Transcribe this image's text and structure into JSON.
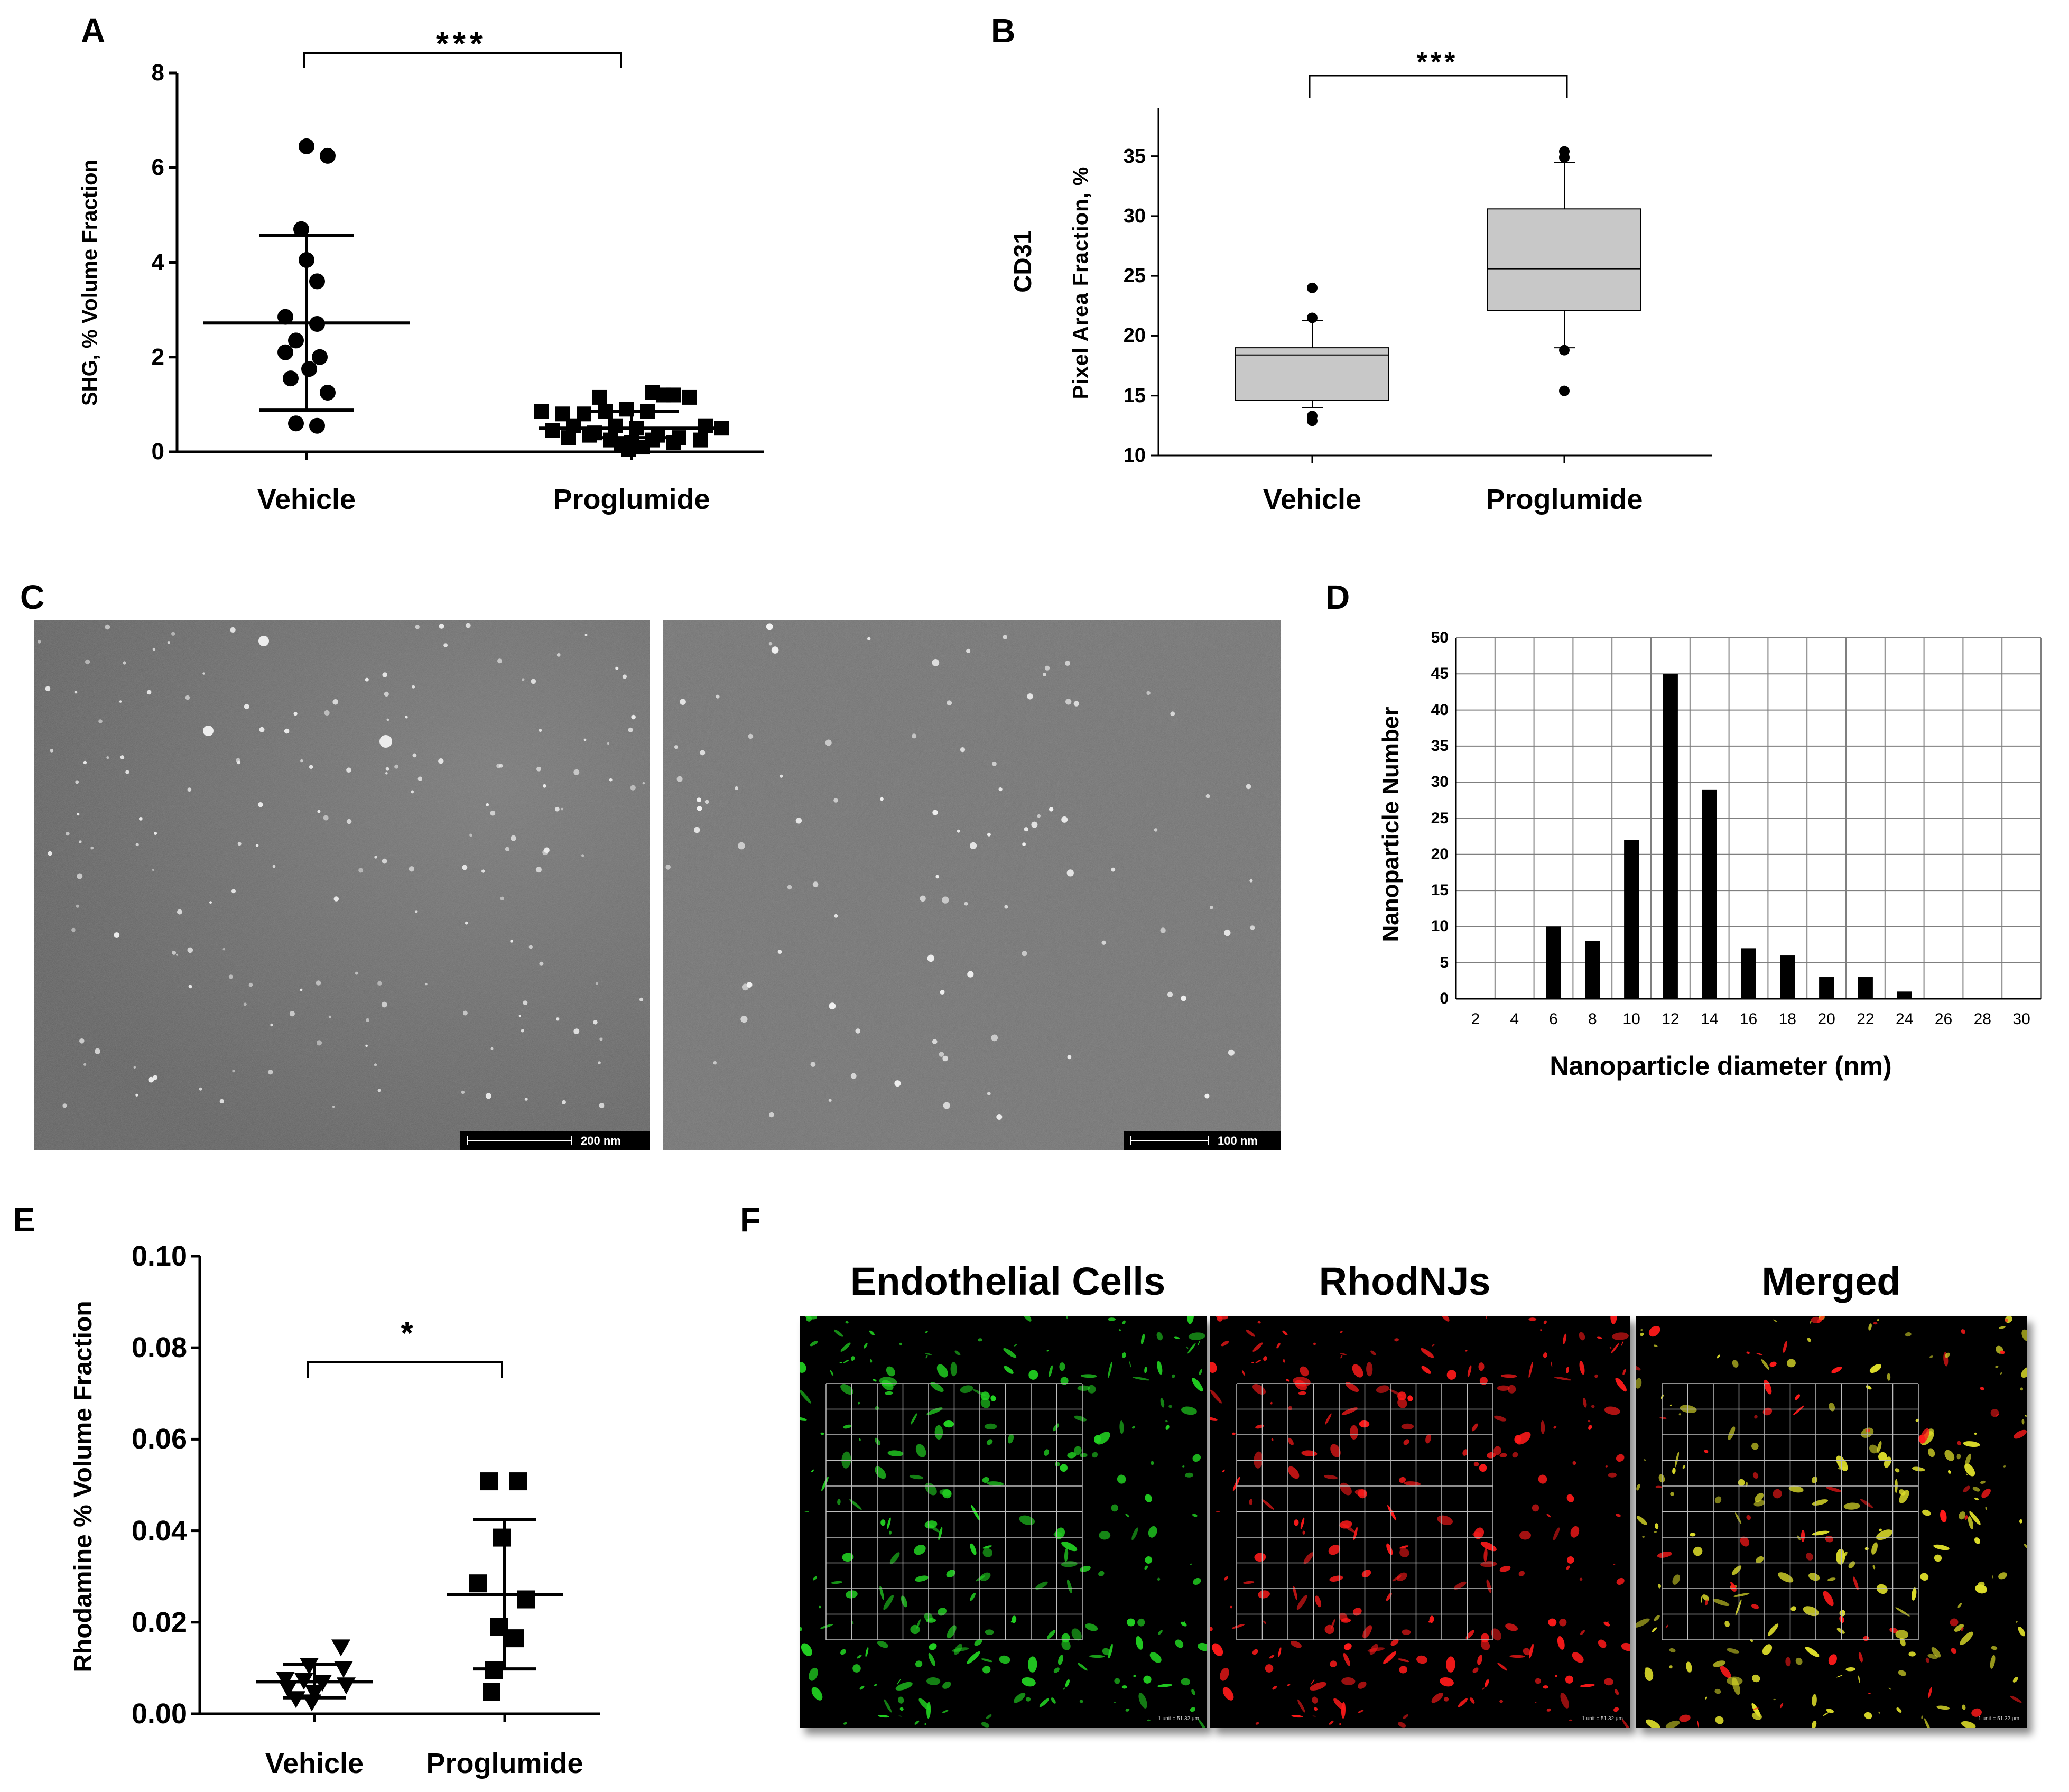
{
  "panels": {
    "A": "A",
    "B": "B",
    "C": "C",
    "D": "D",
    "E": "E",
    "F": "F"
  },
  "chart_data": [
    {
      "id": "A",
      "type": "scatter",
      "ylabel": "SHG, % Volume Fraction",
      "categories": [
        "Vehicle",
        "Proglumide"
      ],
      "ylim": [
        0,
        8
      ],
      "yticks": [
        "0",
        "2",
        "4",
        "6",
        "8"
      ],
      "significance": "***",
      "series": [
        {
          "category": "Vehicle",
          "marker": "circle",
          "values": [
            6.45,
            6.25,
            4.7,
            4.05,
            3.6,
            2.85,
            2.7,
            2.35,
            2.1,
            2.0,
            1.75,
            1.55,
            1.25,
            0.6,
            0.55
          ],
          "mean": 2.72,
          "sd_low": 0.88,
          "sd_high": 4.57
        },
        {
          "category": "Proglumide",
          "marker": "square",
          "values": [
            0.85,
            0.8,
            0.8,
            0.85,
            0.9,
            0.85,
            1.2,
            1.15,
            1.25,
            1.2,
            1.15,
            0.55,
            0.5,
            0.45,
            0.55,
            0.4,
            0.55,
            0.5,
            0.35,
            0.3,
            0.25,
            0.3,
            0.35,
            0.25,
            0.2,
            0.25,
            0.2,
            0.15,
            0.1,
            0.05
          ],
          "mean": 0.5,
          "sd_low": 0.3,
          "sd_high": 0.85
        }
      ]
    },
    {
      "id": "B",
      "type": "box",
      "ylabel_line1": "CD31",
      "ylabel_line2": "Pixel Area Fraction, %",
      "categories": [
        "Vehicle",
        "Proglumide"
      ],
      "ylim": [
        10,
        39
      ],
      "yticks": [
        "10",
        "15",
        "20",
        "25",
        "30",
        "35"
      ],
      "significance": "***",
      "boxes": [
        {
          "category": "Vehicle",
          "whisker_low": 14.0,
          "q1": 14.6,
          "median": 18.4,
          "q3": 19.0,
          "whisker_high": 21.3,
          "outliers": [
            24.0,
            21.5,
            13.3,
            12.9
          ]
        },
        {
          "category": "Proglumide",
          "whisker_low": 19.0,
          "q1": 22.1,
          "median": 25.6,
          "q3": 30.6,
          "whisker_high": 34.5,
          "outliers": [
            35.4,
            34.9,
            18.8,
            15.4
          ]
        }
      ],
      "box_color": "#c8c8c8"
    },
    {
      "id": "D",
      "type": "bar",
      "xlabel": "Nanoparticle diameter (nm)",
      "ylabel": "Nanoparticle Number",
      "categories": [
        "2",
        "4",
        "6",
        "8",
        "10",
        "12",
        "14",
        "16",
        "18",
        "20",
        "22",
        "24",
        "26",
        "28",
        "30"
      ],
      "values": [
        0,
        0,
        10,
        8,
        22,
        45,
        29,
        7,
        6,
        3,
        3,
        1,
        0,
        0,
        0
      ],
      "ylim": [
        0,
        50
      ],
      "yticks": [
        "0",
        "5",
        "10",
        "15",
        "20",
        "25",
        "30",
        "35",
        "40",
        "45",
        "50"
      ],
      "grid": true
    },
    {
      "id": "E",
      "type": "scatter",
      "ylabel": "Rhodamine % Volume Fraction",
      "categories": [
        "Vehicle",
        "Proglumide"
      ],
      "ylim": [
        0,
        0.1
      ],
      "yticks": [
        "0.00",
        "0.02",
        "0.04",
        "0.06",
        "0.08",
        "0.10"
      ],
      "significance": "*",
      "series": [
        {
          "category": "Vehicle",
          "marker": "triangle-down",
          "values": [
            0.0145,
            0.0105,
            0.0098,
            0.0075,
            0.0072,
            0.0068,
            0.0062,
            0.0055,
            0.0045,
            0.0032,
            0.0025
          ],
          "mean": 0.007,
          "sd_low": 0.0035,
          "sd_high": 0.0108
        },
        {
          "category": "Proglumide",
          "marker": "square",
          "values": [
            0.0508,
            0.0508,
            0.0385,
            0.0285,
            0.025,
            0.019,
            0.0165,
            0.0095,
            0.0048
          ],
          "mean": 0.026,
          "sd_low": 0.0098,
          "sd_high": 0.0425
        }
      ]
    }
  ],
  "panel_C": {
    "scalebar_left": "200 nm",
    "scalebar_right": "100 nm"
  },
  "panel_F": {
    "titles": [
      "Endothelial Cells",
      "RhodNJs",
      "Merged"
    ],
    "colors": [
      "#22d322",
      "#ff1a1a",
      "#dede2a"
    ],
    "scale_note": "1 unit = 51.32 µm"
  }
}
